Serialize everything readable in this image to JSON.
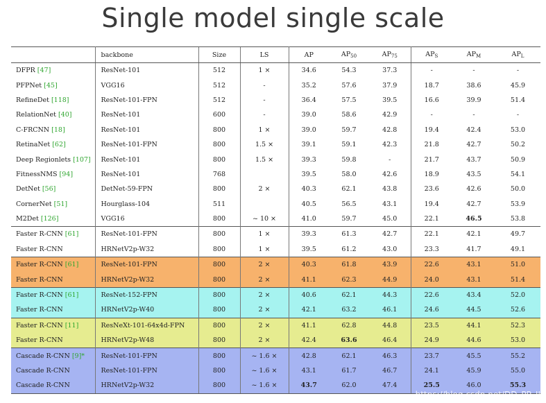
{
  "title": "Single model single scale",
  "headers": {
    "name": "",
    "backbone": "backbone",
    "size": "Size",
    "ls": "LS",
    "ap": "AP",
    "ap50": {
      "main": "AP",
      "sub": "50"
    },
    "ap75": {
      "main": "AP",
      "sub": "75"
    },
    "aps": {
      "main": "AP",
      "sub": "S"
    },
    "apm": {
      "main": "AP",
      "sub": "M"
    },
    "apl": {
      "main": "AP",
      "sub": "L"
    }
  },
  "rows": [
    {
      "name": "DFPR",
      "ref": "[47]",
      "backbone": "ResNet-101",
      "size": "512",
      "ls": "1 ×",
      "ap": "34.6",
      "ap50": "54.3",
      "ap75": "37.3",
      "aps": "-",
      "apm": "-",
      "apl": "-"
    },
    {
      "name": "PFPNet",
      "ref": "[45]",
      "backbone": "VGG16",
      "size": "512",
      "ls": "-",
      "ap": "35.2",
      "ap50": "57.6",
      "ap75": "37.9",
      "aps": "18.7",
      "apm": "38.6",
      "apl": "45.9"
    },
    {
      "name": "RefineDet",
      "ref": "[118]",
      "backbone": "ResNet-101-FPN",
      "size": "512",
      "ls": "-",
      "ap": "36.4",
      "ap50": "57.5",
      "ap75": "39.5",
      "aps": "16.6",
      "apm": "39.9",
      "apl": "51.4"
    },
    {
      "name": "RelationNet",
      "ref": "[40]",
      "backbone": "ResNet-101",
      "size": "600",
      "ls": "-",
      "ap": "39.0",
      "ap50": "58.6",
      "ap75": "42.9",
      "aps": "-",
      "apm": "-",
      "apl": "-"
    },
    {
      "name": "C-FRCNN",
      "ref": "[18]",
      "backbone": "ResNet-101",
      "size": "800",
      "ls": "1 ×",
      "ap": "39.0",
      "ap50": "59.7",
      "ap75": "42.8",
      "aps": "19.4",
      "apm": "42.4",
      "apl": "53.0"
    },
    {
      "name": "RetinaNet",
      "ref": "[62]",
      "backbone": "ResNet-101-FPN",
      "size": "800",
      "ls": "1.5 ×",
      "ap": "39.1",
      "ap50": "59.1",
      "ap75": "42.3",
      "aps": "21.8",
      "apm": "42.7",
      "apl": "50.2"
    },
    {
      "name": "Deep Regionlets",
      "ref": "[107]",
      "backbone": "ResNet-101",
      "size": "800",
      "ls": "1.5 ×",
      "ap": "39.3",
      "ap50": "59.8",
      "ap75": "-",
      "aps": "21.7",
      "apm": "43.7",
      "apl": "50.9"
    },
    {
      "name": "FitnessNMS",
      "ref": "[94]",
      "backbone": "ResNet-101",
      "size": "768",
      "ls": "",
      "ap": "39.5",
      "ap50": "58.0",
      "ap75": "42.6",
      "aps": "18.9",
      "apm": "43.5",
      "apl": "54.1"
    },
    {
      "name": "DetNet",
      "ref": "[56]",
      "backbone": "DetNet-59-FPN",
      "size": "800",
      "ls": "2 ×",
      "ap": "40.3",
      "ap50": "62.1",
      "ap75": "43.8",
      "aps": "23.6",
      "apm": "42.6",
      "apl": "50.0"
    },
    {
      "name": "CornerNet",
      "ref": "[51]",
      "backbone": "Hourglass-104",
      "size": "511",
      "ls": "",
      "ap": "40.5",
      "ap50": "56.5",
      "ap75": "43.1",
      "aps": "19.4",
      "apm": "42.7",
      "apl": "53.9"
    },
    {
      "name": "M2Det",
      "ref": "[126]",
      "backbone": "VGG16",
      "size": "800",
      "ls": "~ 10 ×",
      "ap": "41.0",
      "ap50": "59.7",
      "ap75": "45.0",
      "aps": "22.1",
      "apm": "46.5",
      "apl": "53.8"
    },
    {
      "name": "Faster R-CNN",
      "ref": "[61]",
      "backbone": "ResNet-101-FPN",
      "size": "800",
      "ls": "1 ×",
      "ap": "39.3",
      "ap50": "61.3",
      "ap75": "42.7",
      "aps": "22.1",
      "apm": "42.1",
      "apl": "49.7"
    },
    {
      "name": "Faster R-CNN",
      "ref": "",
      "backbone": "HRNetV2p-W32",
      "size": "800",
      "ls": "1 ×",
      "ap": "39.5",
      "ap50": "61.2",
      "ap75": "43.0",
      "aps": "23.3",
      "apm": "41.7",
      "apl": "49.1"
    },
    {
      "name": "Faster R-CNN",
      "ref": "[61]",
      "backbone": "ResNet-101-FPN",
      "size": "800",
      "ls": "2 ×",
      "ap": "40.3",
      "ap50": "61.8",
      "ap75": "43.9",
      "aps": "22.6",
      "apm": "43.1",
      "apl": "51.0"
    },
    {
      "name": "Faster R-CNN",
      "ref": "",
      "backbone": "HRNetV2p-W32",
      "size": "800",
      "ls": "2 ×",
      "ap": "41.1",
      "ap50": "62.3",
      "ap75": "44.9",
      "aps": "24.0",
      "apm": "43.1",
      "apl": "51.4"
    },
    {
      "name": "Faster R-CNN",
      "ref": "[61]",
      "backbone": "ResNet-152-FPN",
      "size": "800",
      "ls": "2 ×",
      "ap": "40.6",
      "ap50": "62.1",
      "ap75": "44.3",
      "aps": "22.6",
      "apm": "43.4",
      "apl": "52.0"
    },
    {
      "name": "Faster R-CNN",
      "ref": "",
      "backbone": "HRNetV2p-W40",
      "size": "800",
      "ls": "2 ×",
      "ap": "42.1",
      "ap50": "63.2",
      "ap75": "46.1",
      "aps": "24.6",
      "apm": "44.5",
      "apl": "52.6"
    },
    {
      "name": "Faster R-CNN",
      "ref": "[11]",
      "backbone": "ResNeXt-101-64x4d-FPN",
      "size": "800",
      "ls": "2 ×",
      "ap": "41.1",
      "ap50": "62.8",
      "ap75": "44.8",
      "aps": "23.5",
      "apm": "44.1",
      "apl": "52.3"
    },
    {
      "name": "Faster R-CNN",
      "ref": "",
      "backbone": "HRNetV2p-W48",
      "size": "800",
      "ls": "2 ×",
      "ap": "42.4",
      "ap50": "63.6",
      "ap75": "46.4",
      "aps": "24.9",
      "apm": "44.6",
      "apl": "53.0"
    },
    {
      "name": "Cascade R-CNN",
      "ref": "[9]*",
      "backbone": "ResNet-101-FPN",
      "size": "800",
      "ls": "~ 1.6 ×",
      "ap": "42.8",
      "ap50": "62.1",
      "ap75": "46.3",
      "aps": "23.7",
      "apm": "45.5",
      "apl": "55.2"
    },
    {
      "name": "Cascade R-CNN",
      "ref": "",
      "backbone": "ResNet-101-FPN",
      "size": "800",
      "ls": "~ 1.6 ×",
      "ap": "43.1",
      "ap50": "61.7",
      "ap75": "46.7",
      "aps": "24.1",
      "apm": "45.9",
      "apl": "55.0"
    },
    {
      "name": "Cascade R-CNN",
      "ref": "",
      "backbone": "HRNetV2p-W32",
      "size": "800",
      "ls": "~ 1.6 ×",
      "ap": "43.7",
      "ap50": "62.0",
      "ap75": "47.4",
      "aps": "25.5",
      "apm": "46.0",
      "apl": "55.3"
    }
  ],
  "row_groups": [
    "",
    "",
    "",
    "",
    "",
    "",
    "",
    "",
    "",
    "",
    "",
    "",
    "",
    "orange",
    "orange",
    "cyan",
    "cyan",
    "yellow",
    "yellow",
    "blue",
    "blue",
    "blue"
  ],
  "group_starts": [
    11,
    13,
    15,
    17,
    19
  ],
  "bold_cells": [
    [
      10,
      "apm"
    ],
    [
      18,
      "ap50"
    ],
    [
      21,
      "ap"
    ],
    [
      21,
      "aps"
    ],
    [
      21,
      "apl"
    ]
  ],
  "watermark": "https://blog.csdn.net/DD_PP_JJ"
}
